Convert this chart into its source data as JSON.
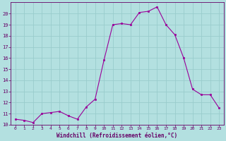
{
  "x": [
    0,
    1,
    2,
    3,
    4,
    5,
    6,
    7,
    8,
    9,
    10,
    11,
    12,
    13,
    14,
    15,
    16,
    17,
    18,
    19,
    20,
    21,
    22,
    23
  ],
  "y": [
    10.5,
    10.4,
    10.2,
    11.0,
    11.1,
    11.2,
    10.8,
    10.5,
    11.6,
    12.3,
    15.8,
    19.0,
    19.1,
    19.0,
    20.1,
    20.2,
    20.6,
    19.0,
    18.1,
    16.0,
    13.2,
    12.7,
    12.7,
    11.5
  ],
  "line_color": "#990099",
  "marker_color": "#990099",
  "bg_color": "#b3e0e0",
  "grid_color": "#99cccc",
  "xlabel": "Windchill (Refroidissement éolien,°C)",
  "xlabel_color": "#660066",
  "tick_color": "#660066",
  "ylim": [
    10,
    21
  ],
  "xlim": [
    -0.5,
    23.5
  ],
  "yticks": [
    10,
    11,
    12,
    13,
    14,
    15,
    16,
    17,
    18,
    19,
    20
  ],
  "xticks": [
    0,
    1,
    2,
    3,
    4,
    5,
    6,
    7,
    8,
    9,
    10,
    11,
    12,
    13,
    14,
    15,
    16,
    17,
    18,
    19,
    20,
    21,
    22,
    23
  ],
  "figsize": [
    3.2,
    2.0
  ],
  "dpi": 100
}
